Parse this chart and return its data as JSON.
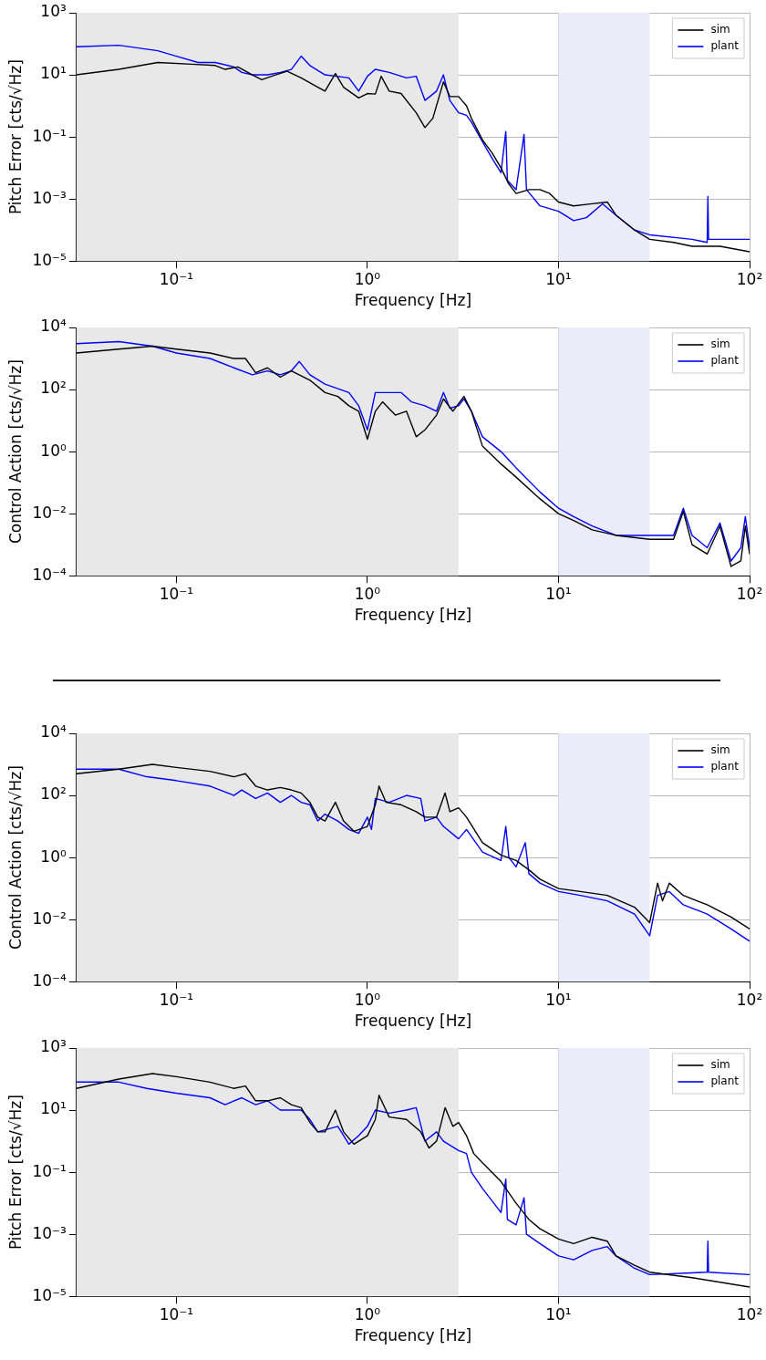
{
  "chart_data": [
    {
      "type": "line",
      "xlabel": "Frequency [Hz]",
      "ylabel": "Pitch Error [cts/√Hz]",
      "log": "xy",
      "grid": true,
      "legend": "top right",
      "marker": "none",
      "line_style": "solid",
      "xlim": [
        0.03,
        100
      ],
      "xticks": [
        {
          "value": 0.1,
          "label": "10⁻¹"
        },
        {
          "value": 1,
          "label": "10⁰"
        },
        {
          "value": 10,
          "label": "10¹"
        },
        {
          "value": 100,
          "label": "10²"
        }
      ],
      "ylim": [
        1e-05,
        1000
      ],
      "yticks": [
        {
          "value": 1e-05,
          "label": "10⁻⁵"
        },
        {
          "value": 0.001,
          "label": "10⁻³"
        },
        {
          "value": 0.1,
          "label": "10⁻¹"
        },
        {
          "value": 10,
          "label": "10¹"
        },
        {
          "value": 1000,
          "label": "10³"
        }
      ],
      "bands": [
        {
          "axis": "x",
          "from": 0.03,
          "to": 3,
          "color": "#e8e8e8"
        },
        {
          "axis": "x",
          "from": 10,
          "to": 30,
          "color": "#ebebfa"
        }
      ],
      "series": [
        {
          "name": "sim",
          "color": "#000000",
          "x": [
            0.03,
            0.05,
            0.08,
            0.12,
            0.16,
            0.18,
            0.21,
            0.25,
            0.28,
            0.33,
            0.38,
            0.45,
            0.55,
            0.6,
            0.68,
            0.75,
            0.9,
            1.0,
            1.1,
            1.18,
            1.3,
            1.5,
            1.8,
            2.0,
            2.2,
            2.5,
            2.7,
            3.0,
            3.3,
            3.5,
            4.0,
            4.5,
            5.0,
            5.5,
            6.0,
            7.0,
            8,
            9,
            10,
            12,
            15,
            18,
            20,
            25,
            30,
            40,
            50,
            70,
            100
          ],
          "values": [
            10,
            15,
            25,
            22,
            20,
            15,
            18,
            10,
            7,
            10,
            13,
            8,
            4,
            3,
            11,
            4,
            1.8,
            2.5,
            2.4,
            9,
            3,
            2.5,
            0.6,
            0.2,
            0.4,
            6,
            2,
            2,
            1,
            0.4,
            0.08,
            0.03,
            0.01,
            0.003,
            0.0015,
            0.002,
            0.002,
            0.0015,
            0.0008,
            0.0006,
            0.0007,
            0.0008,
            0.0003,
            0.0001,
            5e-05,
            4e-05,
            3e-05,
            3e-05,
            2e-05
          ]
        },
        {
          "name": "plant",
          "color": "#0000ff",
          "x": [
            0.03,
            0.05,
            0.08,
            0.1,
            0.13,
            0.16,
            0.2,
            0.22,
            0.25,
            0.3,
            0.35,
            0.4,
            0.45,
            0.5,
            0.6,
            0.8,
            0.9,
            1.0,
            1.1,
            1.3,
            1.6,
            1.8,
            2.0,
            2.3,
            2.5,
            2.7,
            3.0,
            3.3,
            3.5,
            4,
            4.5,
            5,
            5.3,
            5.4,
            6,
            6.6,
            6.8,
            8,
            10,
            12,
            14,
            17,
            20,
            25,
            30,
            50,
            60,
            60.5,
            61,
            100
          ],
          "values": [
            80,
            90,
            60,
            40,
            25,
            25,
            18,
            12,
            10,
            10,
            12,
            15,
            40,
            20,
            10,
            8,
            3,
            9,
            15,
            12,
            8,
            9,
            1.5,
            3,
            10,
            1.5,
            0.6,
            0.5,
            0.3,
            0.07,
            0.02,
            0.007,
            0.15,
            0.004,
            0.002,
            0.12,
            0.002,
            0.0006,
            0.0004,
            0.0002,
            0.00025,
            0.0007,
            0.0003,
            0.0001,
            7e-05,
            5e-05,
            4e-05,
            0.0012,
            5e-05,
            5e-05
          ]
        }
      ]
    },
    {
      "type": "line",
      "xlabel": "Frequency [Hz]",
      "ylabel": "Control Action [cts/√Hz]",
      "log": "xy",
      "grid": true,
      "legend": "top right",
      "marker": "none",
      "line_style": "solid",
      "xlim": [
        0.03,
        100
      ],
      "xticks": [
        {
          "value": 0.1,
          "label": "10⁻¹"
        },
        {
          "value": 1,
          "label": "10⁰"
        },
        {
          "value": 10,
          "label": "10¹"
        },
        {
          "value": 100,
          "label": "10²"
        }
      ],
      "ylim": [
        0.0001,
        10000
      ],
      "yticks": [
        {
          "value": 0.0001,
          "label": "10⁻⁴"
        },
        {
          "value": 0.01,
          "label": "10⁻²"
        },
        {
          "value": 1,
          "label": "10⁰"
        },
        {
          "value": 100,
          "label": "10²"
        },
        {
          "value": 10000,
          "label": "10⁴"
        }
      ],
      "bands": [
        {
          "axis": "x",
          "from": 0.03,
          "to": 3,
          "color": "#e8e8e8"
        },
        {
          "axis": "x",
          "from": 10,
          "to": 30,
          "color": "#ebebfa"
        }
      ],
      "series": [
        {
          "name": "sim",
          "color": "#000000",
          "x": [
            0.03,
            0.05,
            0.075,
            0.1,
            0.15,
            0.2,
            0.23,
            0.26,
            0.3,
            0.35,
            0.4,
            0.5,
            0.6,
            0.7,
            0.8,
            0.9,
            1.0,
            1.1,
            1.2,
            1.4,
            1.6,
            1.8,
            2.0,
            2.3,
            2.5,
            2.8,
            3.2,
            3.5,
            4,
            5,
            6,
            8,
            10,
            12,
            15,
            20,
            30,
            40,
            45,
            50,
            60,
            70,
            80,
            90,
            95,
            100
          ],
          "values": [
            1500,
            2000,
            2500,
            2000,
            1500,
            1000,
            1000,
            350,
            500,
            250,
            400,
            200,
            80,
            60,
            30,
            20,
            2.5,
            20,
            40,
            15,
            20,
            3,
            5,
            15,
            50,
            20,
            60,
            20,
            1.5,
            0.4,
            0.15,
            0.03,
            0.01,
            0.006,
            0.003,
            0.002,
            0.0015,
            0.0015,
            0.012,
            0.001,
            0.0005,
            0.004,
            0.0002,
            0.0003,
            0.004,
            0.0005
          ]
        },
        {
          "name": "plant",
          "color": "#0000ff",
          "x": [
            0.03,
            0.05,
            0.075,
            0.1,
            0.15,
            0.2,
            0.25,
            0.3,
            0.35,
            0.4,
            0.44,
            0.5,
            0.6,
            0.8,
            0.9,
            1.0,
            1.1,
            1.3,
            1.5,
            1.7,
            2.0,
            2.3,
            2.5,
            2.7,
            3.0,
            3.2,
            3.5,
            4,
            5,
            6,
            8,
            10,
            12,
            15,
            20,
            30,
            40,
            45,
            50,
            60,
            70,
            80,
            90,
            95,
            100
          ],
          "values": [
            3000,
            3500,
            2500,
            1500,
            1000,
            500,
            300,
            400,
            300,
            400,
            800,
            300,
            150,
            80,
            30,
            5,
            80,
            80,
            80,
            40,
            30,
            20,
            80,
            25,
            30,
            50,
            20,
            3,
            1,
            0.3,
            0.05,
            0.015,
            0.008,
            0.004,
            0.002,
            0.002,
            0.002,
            0.015,
            0.002,
            0.0008,
            0.005,
            0.0003,
            0.0008,
            0.008,
            0.0008
          ]
        }
      ]
    },
    {
      "type": "line",
      "xlabel": "Frequency [Hz]",
      "ylabel": "Control Action [cts/√Hz]",
      "log": "xy",
      "grid": true,
      "legend": "top right",
      "marker": "none",
      "line_style": "solid",
      "xlim": [
        0.03,
        100
      ],
      "xticks": [
        {
          "value": 0.1,
          "label": "10⁻¹"
        },
        {
          "value": 1,
          "label": "10⁰"
        },
        {
          "value": 10,
          "label": "10¹"
        },
        {
          "value": 100,
          "label": "10²"
        }
      ],
      "ylim": [
        0.0001,
        10000
      ],
      "yticks": [
        {
          "value": 0.0001,
          "label": "10⁻⁴"
        },
        {
          "value": 0.01,
          "label": "10⁻²"
        },
        {
          "value": 1,
          "label": "10⁰"
        },
        {
          "value": 100,
          "label": "10²"
        },
        {
          "value": 10000,
          "label": "10⁴"
        }
      ],
      "bands": [
        {
          "axis": "x",
          "from": 0.03,
          "to": 3,
          "color": "#e8e8e8"
        },
        {
          "axis": "x",
          "from": 10,
          "to": 30,
          "color": "#ebebfa"
        }
      ],
      "series": [
        {
          "name": "sim",
          "color": "#000000",
          "x": [
            0.03,
            0.05,
            0.075,
            0.1,
            0.15,
            0.2,
            0.23,
            0.26,
            0.3,
            0.35,
            0.4,
            0.45,
            0.5,
            0.55,
            0.6,
            0.68,
            0.75,
            0.85,
            1.0,
            1.1,
            1.15,
            1.25,
            1.5,
            1.8,
            2.0,
            2.3,
            2.55,
            2.7,
            3.0,
            3.3,
            4,
            5,
            6,
            7,
            8,
            10,
            13,
            18,
            25,
            30,
            33,
            35,
            38,
            45,
            60,
            80,
            100
          ],
          "values": [
            500,
            700,
            1000,
            800,
            600,
            400,
            500,
            200,
            150,
            180,
            150,
            120,
            60,
            20,
            15,
            60,
            15,
            7,
            10,
            50,
            200,
            60,
            50,
            30,
            20,
            20,
            120,
            30,
            40,
            20,
            3,
            1.2,
            0.8,
            0.4,
            0.2,
            0.1,
            0.08,
            0.06,
            0.025,
            0.008,
            0.15,
            0.04,
            0.15,
            0.06,
            0.03,
            0.012,
            0.005
          ]
        },
        {
          "name": "plant",
          "color": "#0000ff",
          "x": [
            0.03,
            0.05,
            0.07,
            0.1,
            0.15,
            0.2,
            0.22,
            0.26,
            0.3,
            0.35,
            0.4,
            0.45,
            0.5,
            0.55,
            0.6,
            0.7,
            0.8,
            0.9,
            1.0,
            1.05,
            1.1,
            1.3,
            1.6,
            1.9,
            2.0,
            2.3,
            2.5,
            3.0,
            3.3,
            4,
            5,
            5.3,
            5.5,
            6,
            6.7,
            7,
            8,
            10,
            13,
            18,
            25,
            30,
            33,
            38,
            45,
            60,
            80,
            100
          ],
          "values": [
            700,
            700,
            400,
            300,
            200,
            100,
            150,
            80,
            120,
            60,
            100,
            60,
            50,
            15,
            25,
            15,
            8,
            6,
            20,
            8,
            80,
            60,
            100,
            80,
            15,
            20,
            10,
            4,
            8,
            1.5,
            0.8,
            10,
            1,
            0.5,
            3,
            0.3,
            0.15,
            0.08,
            0.06,
            0.04,
            0.015,
            0.003,
            0.06,
            0.08,
            0.03,
            0.015,
            0.005,
            0.002
          ]
        }
      ]
    },
    {
      "type": "line",
      "xlabel": "Frequency [Hz]",
      "ylabel": "Pitch Error [cts/√Hz]",
      "log": "xy",
      "grid": true,
      "legend": "top right",
      "marker": "none",
      "line_style": "solid",
      "xlim": [
        0.03,
        100
      ],
      "xticks": [
        {
          "value": 0.1,
          "label": "10⁻¹"
        },
        {
          "value": 1,
          "label": "10⁰"
        },
        {
          "value": 10,
          "label": "10¹"
        },
        {
          "value": 100,
          "label": "10²"
        }
      ],
      "ylim": [
        1e-05,
        1000
      ],
      "yticks": [
        {
          "value": 1e-05,
          "label": "10⁻⁵"
        },
        {
          "value": 0.001,
          "label": "10⁻³"
        },
        {
          "value": 0.1,
          "label": "10⁻¹"
        },
        {
          "value": 10,
          "label": "10¹"
        },
        {
          "value": 1000,
          "label": "10³"
        }
      ],
      "bands": [
        {
          "axis": "x",
          "from": 0.03,
          "to": 3,
          "color": "#e8e8e8"
        },
        {
          "axis": "x",
          "from": 10,
          "to": 30,
          "color": "#ebebfa"
        }
      ],
      "series": [
        {
          "name": "sim",
          "color": "#000000",
          "x": [
            0.03,
            0.05,
            0.075,
            0.1,
            0.15,
            0.2,
            0.23,
            0.26,
            0.3,
            0.35,
            0.4,
            0.45,
            0.5,
            0.55,
            0.6,
            0.68,
            0.75,
            0.85,
            1.0,
            1.1,
            1.15,
            1.3,
            1.6,
            1.9,
            2.1,
            2.3,
            2.55,
            2.8,
            3.0,
            3.3,
            3.6,
            4,
            5,
            6,
            7,
            8,
            10,
            12,
            15,
            18,
            20,
            25,
            30,
            50,
            100
          ],
          "values": [
            50,
            100,
            150,
            120,
            80,
            50,
            60,
            20,
            20,
            25,
            15,
            12,
            4,
            2,
            2,
            10,
            2,
            0.8,
            1.5,
            5,
            30,
            6,
            5,
            2,
            0.6,
            1,
            12,
            3,
            4,
            1.5,
            0.4,
            0.2,
            0.05,
            0.01,
            0.003,
            0.0015,
            0.0007,
            0.0005,
            0.0008,
            0.0006,
            0.0002,
            0.0001,
            6e-05,
            4e-05,
            2e-05
          ]
        },
        {
          "name": "plant",
          "color": "#0000ff",
          "x": [
            0.03,
            0.05,
            0.07,
            0.1,
            0.15,
            0.18,
            0.22,
            0.26,
            0.3,
            0.35,
            0.45,
            0.5,
            0.55,
            0.7,
            0.8,
            0.9,
            1.0,
            1.1,
            1.3,
            1.6,
            1.8,
            2.0,
            2.3,
            2.5,
            3.0,
            3.3,
            3.5,
            4,
            5,
            5.3,
            5.4,
            6,
            6.6,
            6.8,
            8,
            10,
            12,
            15,
            18,
            20,
            25,
            30,
            60,
            60.5,
            61,
            100
          ],
          "values": [
            80,
            80,
            50,
            35,
            25,
            15,
            25,
            15,
            20,
            10,
            10,
            5,
            2,
            3,
            0.8,
            1.5,
            3,
            10,
            8,
            10,
            12,
            1,
            2,
            1,
            0.5,
            0.4,
            0.1,
            0.03,
            0.005,
            0.06,
            0.003,
            0.002,
            0.015,
            0.001,
            0.0005,
            0.0002,
            0.00015,
            0.0003,
            0.0004,
            0.0002,
            8e-05,
            5e-05,
            6e-05,
            0.0006,
            6e-05,
            5e-05
          ]
        }
      ]
    }
  ]
}
